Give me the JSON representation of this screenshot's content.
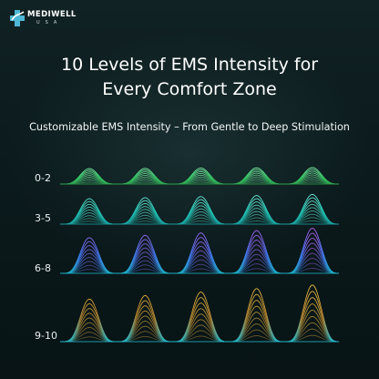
{
  "brand": {
    "name": "MEDIWELL",
    "sub": "USA"
  },
  "headline": {
    "line1": "10 Levels of EMS Intensity for",
    "line2": "Every Comfort Zone"
  },
  "subheadline": "Customizable EMS Intensity – From Gentle to Deep Stimulation",
  "levels": [
    {
      "label": "0-2",
      "intensity": 0.2,
      "colors": [
        "#2fa24e",
        "#39d06a",
        "#7af0a3"
      ]
    },
    {
      "label": "3-5",
      "intensity": 0.5,
      "colors": [
        "#1a9e9e",
        "#22d3c1",
        "#6ff4dc"
      ]
    },
    {
      "label": "6-8",
      "intensity": 0.8,
      "colors": [
        "#1ab0c8",
        "#4b79ff",
        "#b45cf0"
      ]
    },
    {
      "label": "9-10",
      "intensity": 1.0,
      "colors": [
        "#22b7c9",
        "#c28a2e",
        "#f0c040"
      ]
    }
  ],
  "icons": {
    "logo": "medical-cross-logo-icon"
  }
}
